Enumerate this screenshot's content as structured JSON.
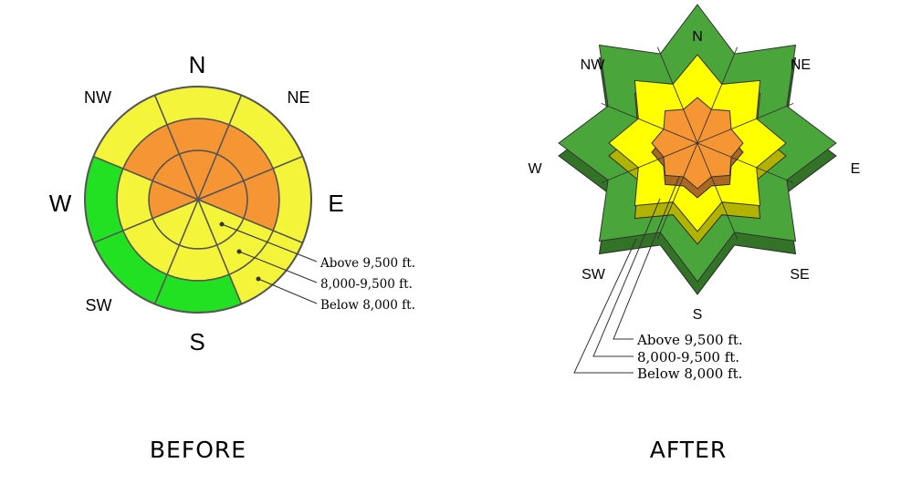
{
  "colors": {
    "green_light": "#22e022",
    "green_dark": "#4aa53a",
    "yellow": "#ffff00",
    "yellow_before": "#f4f43a",
    "orange": "#f59534",
    "edge": "#555555",
    "shadow": "#2f6e26"
  },
  "before": {
    "caption": "BEFORE",
    "directions": {
      "N": "N",
      "NE": "NE",
      "E": "E",
      "SE": "",
      "S": "S",
      "SW": "SW",
      "W": "W",
      "NW": "NW"
    },
    "legend": [
      "Above 9,500 ft.",
      "8,000-9,500 ft.",
      "Below 8,000 ft."
    ],
    "danger": {
      "outer": [
        "yellow",
        "yellow",
        "yellow",
        "yellow",
        "green",
        "green",
        "green",
        "yellow"
      ],
      "middle": [
        "orange",
        "orange",
        "orange",
        "yellow",
        "yellow",
        "yellow",
        "yellow",
        "orange"
      ],
      "inner": [
        "orange",
        "orange",
        "orange",
        "yellow",
        "yellow",
        "yellow",
        "orange",
        "orange"
      ]
    }
  },
  "after": {
    "caption": "AFTER",
    "directions": {
      "N": "N",
      "NE": "NE",
      "E": "E",
      "SE": "SE",
      "S": "S",
      "SW": "SW",
      "W": "W",
      "NW": "NW"
    },
    "legend": [
      "Above 9,500 ft.",
      "8,000-9,500 ft.",
      "Below 8,000 ft."
    ],
    "danger": {
      "outer": "green",
      "middle": "yellow",
      "inner": "orange"
    }
  }
}
